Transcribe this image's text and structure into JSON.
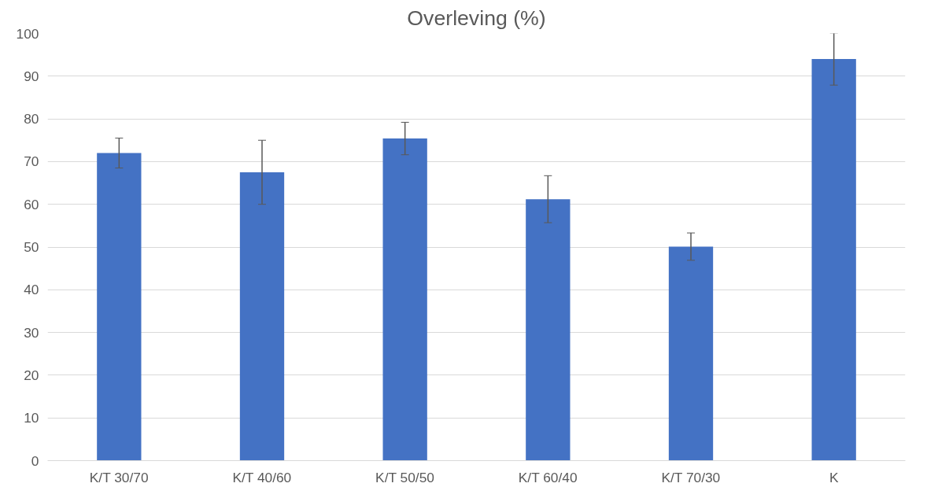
{
  "chart_data": {
    "type": "bar",
    "title": "Overleving (%)",
    "categories": [
      "K/T 30/70",
      "K/T 40/60",
      "K/T 50/50",
      "K/T 60/40",
      "K/T 70/30",
      "K"
    ],
    "values": [
      72,
      67.5,
      75.4,
      61.2,
      50.1,
      94
    ],
    "errors": [
      3.5,
      7.5,
      3.8,
      5.5,
      3.2,
      6.1
    ],
    "color": "#4472c4",
    "ylim": [
      0,
      100
    ],
    "yticks": [
      0,
      10,
      20,
      30,
      40,
      50,
      60,
      70,
      80,
      90,
      100
    ],
    "grid": "y"
  }
}
